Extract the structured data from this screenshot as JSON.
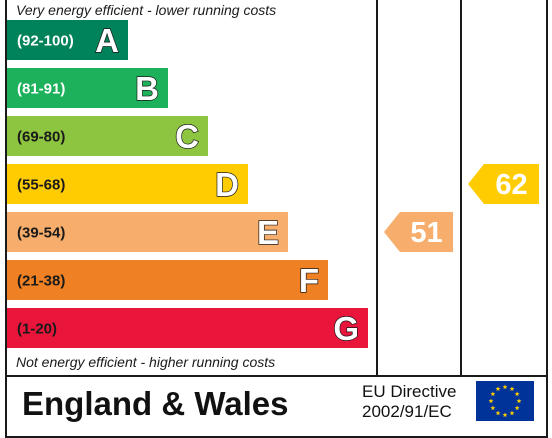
{
  "chart_data": {
    "type": "bar",
    "top_note": "Very energy efficient - lower running costs",
    "bottom_note": "Not energy efficient - higher running costs",
    "bands": [
      {
        "range": "(92-100)",
        "letter": "A",
        "color": "#00835a",
        "range_text_color": "#ffffff"
      },
      {
        "range": "(81-91)",
        "letter": "B",
        "color": "#1cb15a",
        "range_text_color": "#ffffff"
      },
      {
        "range": "(69-80)",
        "letter": "C",
        "color": "#8dc540",
        "range_text_color": "#1a1a1a"
      },
      {
        "range": "(55-68)",
        "letter": "D",
        "color": "#ffcc02",
        "range_text_color": "#1a1a1a"
      },
      {
        "range": "(39-54)",
        "letter": "E",
        "color": "#f7ad6b",
        "range_text_color": "#1a1a1a"
      },
      {
        "range": "(21-38)",
        "letter": "F",
        "color": "#ef8023",
        "range_text_color": "#1a1a1a"
      },
      {
        "range": "(1-20)",
        "letter": "G",
        "color": "#e9153b",
        "range_text_color": "#1a1a1a"
      }
    ],
    "current": {
      "value": 51,
      "band": "E",
      "color": "#f7ad6b"
    },
    "potential": {
      "value": 62,
      "band": "D",
      "color": "#ffcc02"
    }
  },
  "footer": {
    "country": "England & Wales",
    "directive_line1": "EU Directive",
    "directive_line2": "2002/91/EC",
    "flag_color": "#003399",
    "star_color": "#ffcc00"
  }
}
